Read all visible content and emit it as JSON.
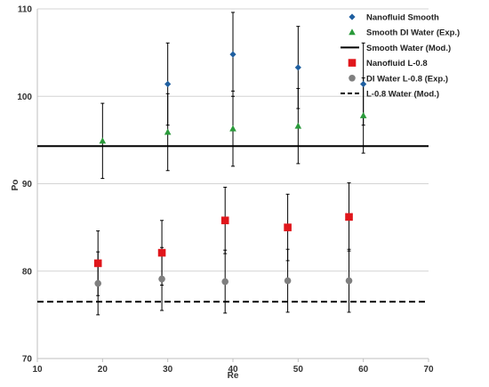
{
  "chart_data": {
    "type": "scatter",
    "xlabel": "Re",
    "ylabel": "Po",
    "xlim": [
      10,
      70
    ],
    "ylim": [
      70,
      110
    ],
    "xticks": [
      10,
      20,
      30,
      40,
      50,
      60,
      70
    ],
    "yticks": [
      70,
      80,
      90,
      100,
      110
    ],
    "grid": "horizontal",
    "legend_position": "top-right",
    "series": [
      {
        "name": "Nanofluid Smooth",
        "marker": "diamond",
        "color": "#1f5fa0",
        "points": [
          {
            "x": 30,
            "y": 101.4,
            "err": 4.7
          },
          {
            "x": 40,
            "y": 104.8,
            "err": 4.8
          },
          {
            "x": 50,
            "y": 103.3,
            "err": 4.7
          },
          {
            "x": 60,
            "y": 101.4,
            "err": 4.7
          }
        ]
      },
      {
        "name": "Smooth DI Water (Exp.)",
        "marker": "triangle",
        "color": "#2a9a3a",
        "points": [
          {
            "x": 20,
            "y": 94.9,
            "err": 4.3
          },
          {
            "x": 30,
            "y": 95.9,
            "err": 4.4
          },
          {
            "x": 40,
            "y": 96.3,
            "err": 4.3
          },
          {
            "x": 50,
            "y": 96.6,
            "err": 4.3
          },
          {
            "x": 60,
            "y": 97.8,
            "err": 4.3
          }
        ]
      },
      {
        "name": "Smooth Water (Mod.)",
        "line_style": "solid",
        "color": "#000000",
        "value": 94.3
      },
      {
        "name": "Nanofluid L-0.8",
        "marker": "square",
        "color": "#e0161b",
        "points": [
          {
            "x": 19.3,
            "y": 80.9,
            "err": 3.7
          },
          {
            "x": 29.1,
            "y": 82.1,
            "err": 3.7
          },
          {
            "x": 38.8,
            "y": 85.8,
            "err": 3.8
          },
          {
            "x": 48.4,
            "y": 85.0,
            "err": 3.8
          },
          {
            "x": 57.8,
            "y": 86.2,
            "err": 3.9
          }
        ]
      },
      {
        "name": "DI Water L-0.8 (Exp.)",
        "marker": "circle",
        "color": "#7f7f7f",
        "points": [
          {
            "x": 19.3,
            "y": 78.6,
            "err": 3.6
          },
          {
            "x": 29.1,
            "y": 79.1,
            "err": 3.6
          },
          {
            "x": 38.8,
            "y": 78.8,
            "err": 3.6
          },
          {
            "x": 48.4,
            "y": 78.9,
            "err": 3.6
          },
          {
            "x": 57.8,
            "y": 78.9,
            "err": 3.6
          }
        ]
      },
      {
        "name": "L-0.8 Water (Mod.)",
        "line_style": "dashed",
        "color": "#000000",
        "value": 76.5
      }
    ]
  }
}
